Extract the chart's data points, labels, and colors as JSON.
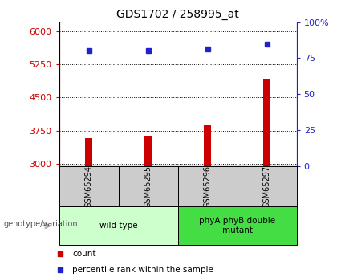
{
  "title": "GDS1702 / 258995_at",
  "samples": [
    "GSM65294",
    "GSM65295",
    "GSM65296",
    "GSM65297"
  ],
  "counts": [
    3590,
    3620,
    3870,
    4930
  ],
  "percentiles": [
    80.5,
    80,
    81.5,
    85
  ],
  "ylim_left": [
    2950,
    6200
  ],
  "ylim_right": [
    0,
    100
  ],
  "yticks_left": [
    3000,
    3750,
    4500,
    5250,
    6000
  ],
  "yticks_right": [
    0,
    25,
    50,
    75,
    100
  ],
  "bar_color": "#cc0000",
  "dot_color": "#2222cc",
  "groups": [
    {
      "label": "wild type",
      "samples": [
        0,
        1
      ],
      "color": "#ccffcc"
    },
    {
      "label": "phyA phyB double\nmutant",
      "samples": [
        2,
        3
      ],
      "color": "#44dd44"
    }
  ],
  "group_label_prefix": "genotype/variation",
  "legend_items": [
    {
      "label": "count",
      "color": "#cc0000"
    },
    {
      "label": "percentile rank within the sample",
      "color": "#2222cc"
    }
  ],
  "bg_plot": "#ffffff",
  "bg_label_row": "#cccccc",
  "title_color": "#000000",
  "left_axis_color": "#cc0000",
  "right_axis_color": "#2222cc",
  "arrow_color": "#aaaaaa"
}
